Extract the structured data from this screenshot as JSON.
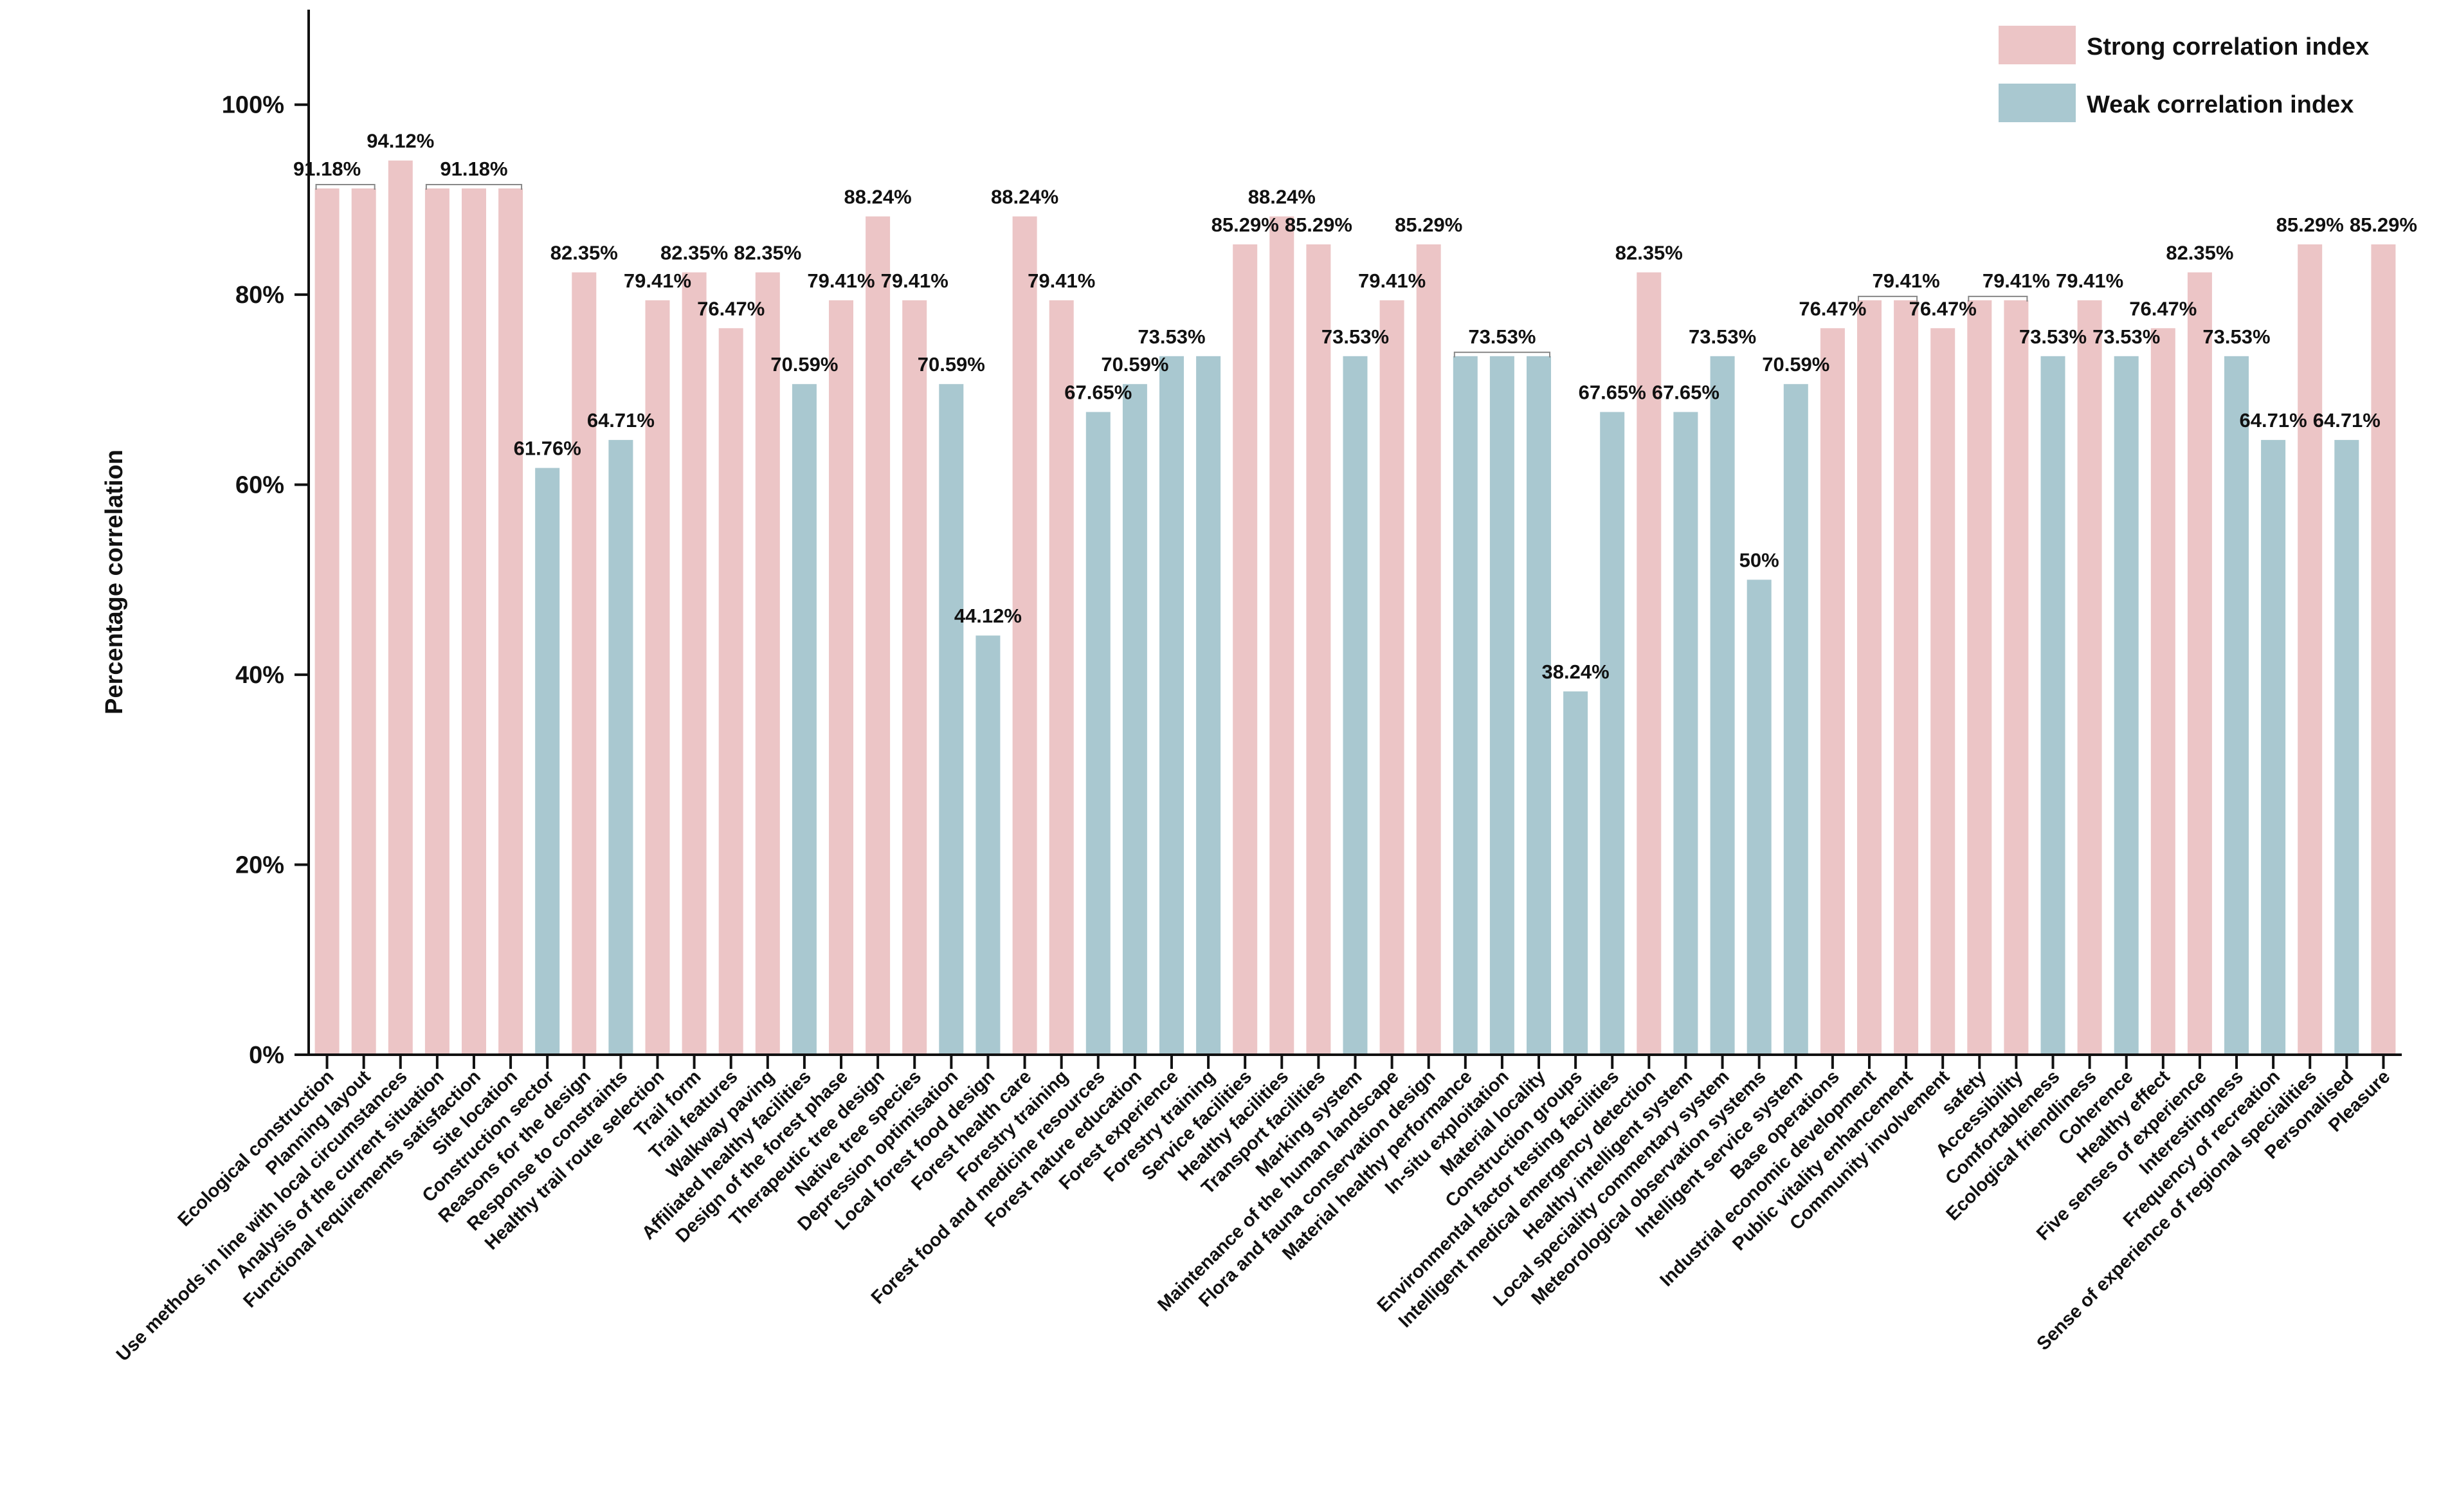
{
  "chart_data": {
    "type": "bar",
    "title": "",
    "xlabel": "",
    "ylabel": "Percentage correlation",
    "ylim": [
      0,
      110
    ],
    "yticks": [
      0,
      20,
      40,
      60,
      80,
      100
    ],
    "ytick_labels": [
      "0%",
      "20%",
      "40%",
      "60%",
      "80%",
      "100%"
    ],
    "grid": false,
    "legend": {
      "position": "top-right",
      "entries": [
        "Strong correlation index",
        "Weak correlation index"
      ]
    },
    "colors": {
      "strong": "#ecc5c6",
      "weak": "#a9c8d0",
      "axis": "#111111"
    },
    "categories": [
      "Ecological construction",
      "Planning layout",
      "Use methods in line with local circumstances",
      "Analysis of the current situation",
      "Functional requirements satisfaction",
      "Site location",
      "Construction sector",
      "Reasons for the design",
      "Response to constraints",
      "Healthy trail route selection",
      "Trail form",
      "Trail features",
      "Walkway paving",
      "Affiliated healthy facilities",
      "Design of the forest phase",
      "Therapeutic tree design",
      "Native tree species",
      "Depression optimisation",
      "Local forest food design",
      "Forest health care",
      "Forestry training",
      "Forest food and medicine resources",
      "Forest nature education",
      "Forest experience",
      "Forestry training",
      "Service facilities",
      "Healthy facilities",
      "Transport facilities",
      "Marking system",
      "Maintenance of the human landscape",
      "Flora and fauna conservation design",
      "Material healthy performance",
      "In-situ exploitation",
      "Material locality",
      "Construction groups",
      "Environmental factor testing facilities",
      "Intelligent medical emergency detection",
      "Healthy intelligent system",
      "Local speciality commentary system",
      "Meteorological observation systems",
      "Intelligent service system",
      "Base operations",
      "Industrial economic development",
      "Public vitality enhancement",
      "Community involvement",
      "safety",
      "Accessibility",
      "Comfortableness",
      "Ecological friendliness",
      "Coherence",
      "Healthy effect",
      "Five senses of experience",
      "Interestingness",
      "Frequency of recreation",
      "Sense of experience of regional specialities",
      "Personalised",
      "Pleasure"
    ],
    "values": [
      91.18,
      91.18,
      94.12,
      91.18,
      91.18,
      91.18,
      61.76,
      82.35,
      64.71,
      79.41,
      82.35,
      76.47,
      82.35,
      70.59,
      79.41,
      88.24,
      79.41,
      70.59,
      44.12,
      88.24,
      79.41,
      67.65,
      70.59,
      73.53,
      73.53,
      85.29,
      88.24,
      85.29,
      73.53,
      79.41,
      85.29,
      73.53,
      73.53,
      73.53,
      38.24,
      67.65,
      82.35,
      67.65,
      73.53,
      50.0,
      70.59,
      76.47,
      79.41,
      79.41,
      76.47,
      79.41,
      79.41,
      73.53,
      79.41,
      73.53,
      76.47,
      82.35,
      73.53,
      64.71,
      85.29,
      64.71,
      85.29
    ],
    "groups": [
      "strong",
      "strong",
      "strong",
      "strong",
      "strong",
      "strong",
      "weak",
      "strong",
      "weak",
      "strong",
      "strong",
      "strong",
      "strong",
      "weak",
      "strong",
      "strong",
      "strong",
      "weak",
      "weak",
      "strong",
      "strong",
      "weak",
      "weak",
      "weak",
      "weak",
      "strong",
      "strong",
      "strong",
      "weak",
      "strong",
      "strong",
      "weak",
      "weak",
      "weak",
      "weak",
      "weak",
      "strong",
      "weak",
      "weak",
      "weak",
      "weak",
      "strong",
      "strong",
      "strong",
      "strong",
      "strong",
      "strong",
      "weak",
      "strong",
      "weak",
      "strong",
      "strong",
      "weak",
      "weak",
      "strong",
      "weak",
      "strong"
    ],
    "data_labels": [
      "91.18%",
      "",
      "94.12%",
      "",
      "91.18%",
      "",
      "61.76%",
      "82.35%",
      "64.71%",
      "79.41%",
      "82.35%",
      "76.47%",
      "82.35%",
      "70.59%",
      "79.41%",
      "88.24%",
      "79.41%",
      "70.59%",
      "44.12%",
      "88.24%",
      "79.41%",
      "67.65%",
      "70.59%",
      "73.53%",
      "",
      "85.29%",
      "88.24%",
      "85.29%",
      "73.53%",
      "79.41%",
      "85.29%",
      "",
      "73.53%",
      "",
      "38.24%",
      "67.65%",
      "82.35%",
      "67.65%",
      "73.53%",
      "50%",
      "70.59%",
      "76.47%",
      "",
      "79.41%",
      "76.47%",
      "",
      "79.41%",
      "73.53%",
      "79.41%",
      "73.53%",
      "76.47%",
      "82.35%",
      "73.53%",
      "64.71%",
      "85.29%",
      "64.71%",
      "85.29%"
    ],
    "brackets": [
      [
        0,
        1
      ],
      [
        3,
        5
      ],
      [
        31,
        33
      ],
      [
        42,
        43
      ],
      [
        45,
        46
      ]
    ]
  }
}
